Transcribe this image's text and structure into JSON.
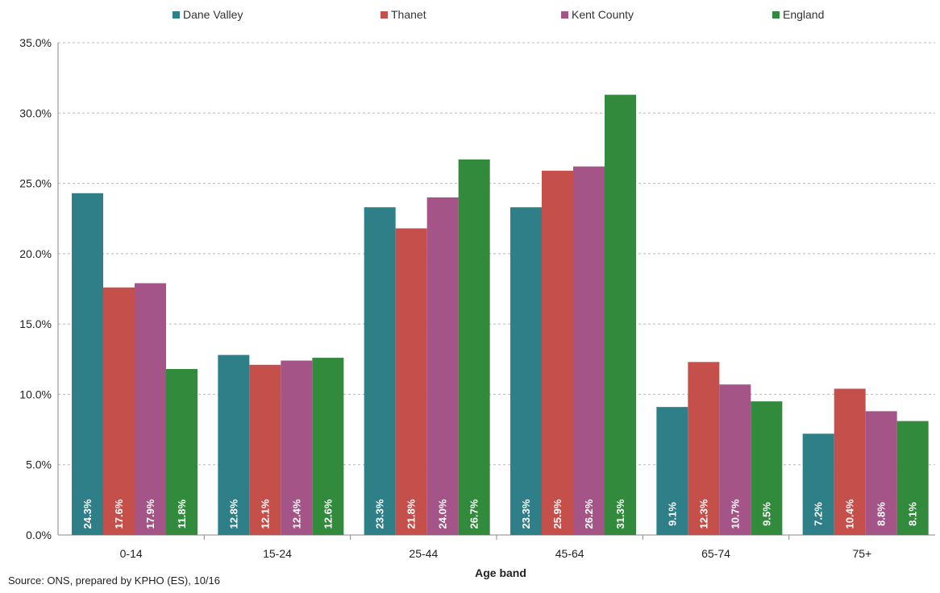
{
  "chart_data": {
    "type": "bar",
    "categories": [
      "0-14",
      "15-24",
      "25-44",
      "45-64",
      "65-74",
      "75+"
    ],
    "series": [
      {
        "name": "Dane Valley",
        "color": "#2e7f87",
        "values": [
          24.3,
          12.8,
          23.3,
          23.3,
          9.1,
          7.2
        ],
        "labels": [
          "24.3%",
          "12.8%",
          "23.3%",
          "23.3%",
          "9.1%",
          "7.2%"
        ]
      },
      {
        "name": "Thanet",
        "color": "#c5504b",
        "values": [
          17.6,
          12.1,
          21.8,
          25.9,
          12.3,
          10.4
        ],
        "labels": [
          "17.6%",
          "12.1%",
          "21.8%",
          "25.9%",
          "12.3%",
          "10.4%"
        ]
      },
      {
        "name": "Kent County",
        "color": "#a45487",
        "values": [
          17.9,
          12.4,
          24.0,
          26.2,
          10.7,
          8.8
        ],
        "labels": [
          "17.9%",
          "12.4%",
          "24.0%",
          "26.2%",
          "10.7%",
          "8.8%"
        ]
      },
      {
        "name": "England",
        "color": "#328a3c",
        "values": [
          11.8,
          12.6,
          26.7,
          31.3,
          9.5,
          8.1
        ],
        "labels": [
          "11.8%",
          "12.6%",
          "26.7%",
          "31.3%",
          "9.5%",
          "8.1%"
        ]
      }
    ],
    "yticks": [
      "0.0%",
      "5.0%",
      "10.0%",
      "15.0%",
      "20.0%",
      "25.0%",
      "30.0%",
      "35.0%"
    ],
    "ylim": [
      0,
      35
    ],
    "xlabel": "Age band",
    "ylabel": "",
    "grid": true,
    "legend": "top"
  },
  "source_note": "Source: ONS, prepared by KPHO (ES), 10/16"
}
